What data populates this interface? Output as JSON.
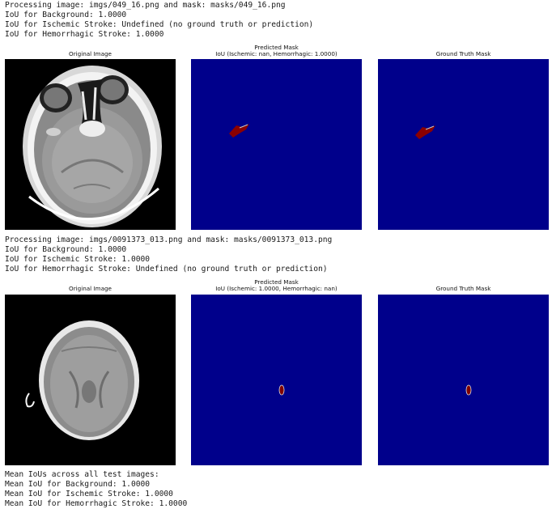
{
  "output_blocks": [
    {
      "log_lines": [
        "Processing image: imgs/049_16.png and mask: masks/049_16.png",
        "IoU for Background: 1.0000",
        "IoU for Ischemic Stroke: Undefined (no ground truth or prediction)",
        "IoU for Hemorrhagic Stroke: 1.0000"
      ],
      "figure": {
        "original_title": "Original Image",
        "predicted_title_line1": "Predicted Mask",
        "predicted_title_line2": "IoU (Ischemic: nan, Hemorrhagic: 1.0000)",
        "ground_truth_title": "Ground Truth Mask"
      }
    },
    {
      "log_lines": [
        "Processing image: imgs/0091373_013.png and mask: masks/0091373_013.png",
        "IoU for Background: 1.0000",
        "IoU for Ischemic Stroke: 1.0000",
        "IoU for Hemorrhagic Stroke: Undefined (no ground truth or prediction)"
      ],
      "figure": {
        "original_title": "Original Image",
        "predicted_title_line1": "Predicted Mask",
        "predicted_title_line2": "IoU (Ischemic: 1.0000, Hemorrhagic: nan)",
        "ground_truth_title": "Ground Truth Mask"
      }
    }
  ],
  "summary_lines": [
    "Mean IoUs across all test images:",
    "Mean IoU for Background: 1.0000",
    "Mean IoU for Ischemic Stroke: 1.0000",
    "Mean IoU for Hemorrhagic Stroke: 1.0000"
  ],
  "colors": {
    "mask_background": "#00008b",
    "hemorrhagic_lesion": "#8b0000",
    "ischemic_lesion": "#800000",
    "page_background": "#ffffff"
  }
}
